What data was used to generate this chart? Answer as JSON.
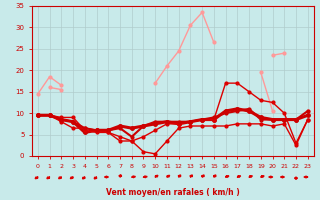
{
  "background_color": "#c8eaea",
  "grid_color": "#b0cccc",
  "xlabel": "Vent moyen/en rafales ( km/h )",
  "xlim": [
    -0.5,
    23.5
  ],
  "ylim": [
    0,
    35
  ],
  "yticks": [
    0,
    5,
    10,
    15,
    20,
    25,
    30,
    35
  ],
  "xticks": [
    0,
    1,
    2,
    3,
    4,
    5,
    6,
    7,
    8,
    9,
    10,
    11,
    12,
    13,
    14,
    15,
    16,
    17,
    18,
    19,
    20,
    21,
    22,
    23
  ],
  "series": [
    {
      "x": [
        0,
        1,
        2
      ],
      "y": [
        14.5,
        18.5,
        16.5
      ],
      "color": "#ff9999",
      "linewidth": 1.0,
      "marker": "o",
      "markersize": 2
    },
    {
      "x": [
        1,
        2
      ],
      "y": [
        16.0,
        15.5
      ],
      "color": "#ff9999",
      "linewidth": 1.0,
      "marker": "o",
      "markersize": 2
    },
    {
      "x": [
        10,
        11,
        12,
        13,
        14,
        15
      ],
      "y": [
        17.0,
        21.0,
        24.5,
        30.5,
        33.5,
        26.5
      ],
      "color": "#ff9999",
      "linewidth": 1.0,
      "marker": "o",
      "markersize": 2
    },
    {
      "x": [
        19,
        20
      ],
      "y": [
        19.5,
        10.5
      ],
      "color": "#ff9999",
      "linewidth": 1.0,
      "marker": "o",
      "markersize": 2
    },
    {
      "x": [
        20,
        21
      ],
      "y": [
        23.5,
        24.0
      ],
      "color": "#ff9999",
      "linewidth": 1.0,
      "marker": "o",
      "markersize": 2
    },
    {
      "x": [
        23
      ],
      "y": [
        10.5
      ],
      "color": "#ff9999",
      "linewidth": 1.0,
      "marker": "o",
      "markersize": 2
    },
    {
      "x": [
        0,
        1,
        2,
        3,
        4,
        5,
        6,
        7,
        8,
        9,
        10,
        11,
        12,
        13,
        14,
        15,
        16,
        17,
        18,
        19,
        20,
        21,
        22,
        23
      ],
      "y": [
        9.5,
        9.5,
        8.5,
        8.0,
        5.5,
        6.0,
        6.0,
        7.0,
        6.5,
        7.0,
        7.5,
        8.0,
        7.5,
        8.0,
        8.5,
        8.5,
        10.5,
        11.0,
        10.5,
        9.0,
        8.5,
        8.5,
        8.5,
        9.5
      ],
      "color": "#cc0000",
      "linewidth": 2.2,
      "marker": "o",
      "markersize": 2.5
    },
    {
      "x": [
        0,
        1,
        2,
        3,
        4,
        5,
        6,
        7,
        8,
        9,
        10,
        11,
        12,
        13,
        14,
        15,
        16,
        17,
        18,
        19,
        20,
        21,
        22,
        23
      ],
      "y": [
        9.5,
        9.5,
        9.0,
        9.0,
        6.0,
        5.5,
        5.5,
        3.5,
        3.5,
        1.0,
        0.5,
        3.5,
        6.5,
        7.0,
        7.0,
        7.0,
        7.0,
        7.5,
        7.5,
        7.5,
        7.0,
        7.5,
        2.5,
        8.5
      ],
      "color": "#dd0000",
      "linewidth": 1.0,
      "marker": "o",
      "markersize": 2
    },
    {
      "x": [
        0,
        1,
        2,
        3,
        4,
        5,
        6,
        7,
        8,
        9,
        10,
        11,
        12,
        13,
        14,
        15,
        16,
        17,
        18,
        19,
        20,
        21,
        22,
        23
      ],
      "y": [
        9.5,
        9.5,
        8.0,
        6.5,
        6.5,
        6.0,
        5.5,
        4.5,
        3.5,
        4.5,
        6.0,
        7.5,
        7.5,
        8.0,
        8.5,
        8.5,
        17.0,
        17.0,
        15.0,
        13.0,
        12.5,
        10.0,
        3.0,
        8.5
      ],
      "color": "#dd0000",
      "linewidth": 1.0,
      "marker": "o",
      "markersize": 2
    },
    {
      "x": [
        0,
        1,
        2,
        3,
        4,
        5,
        6,
        7,
        8,
        9,
        10,
        11,
        12,
        13,
        14,
        15,
        16,
        17,
        18,
        19,
        20,
        21,
        22,
        23
      ],
      "y": [
        9.5,
        9.5,
        8.5,
        8.0,
        6.5,
        6.0,
        6.0,
        6.5,
        4.5,
        7.0,
        8.0,
        8.0,
        8.0,
        8.0,
        8.5,
        9.0,
        10.0,
        10.5,
        11.0,
        8.5,
        8.5,
        8.5,
        8.5,
        10.5
      ],
      "color": "#cc0000",
      "linewidth": 1.5,
      "marker": "o",
      "markersize": 2
    }
  ],
  "wind_arrows_x": [
    0,
    1,
    2,
    3,
    4,
    5,
    6,
    7,
    8,
    9,
    10,
    11,
    12,
    13,
    14,
    15,
    16,
    17,
    18,
    19,
    20,
    21,
    22,
    23
  ],
  "wind_angles": [
    225,
    225,
    225,
    225,
    215,
    215,
    270,
    10,
    80,
    80,
    45,
    45,
    30,
    30,
    30,
    30,
    60,
    60,
    60,
    60,
    270,
    270,
    180,
    270
  ],
  "arrow_color": "#dd0000"
}
